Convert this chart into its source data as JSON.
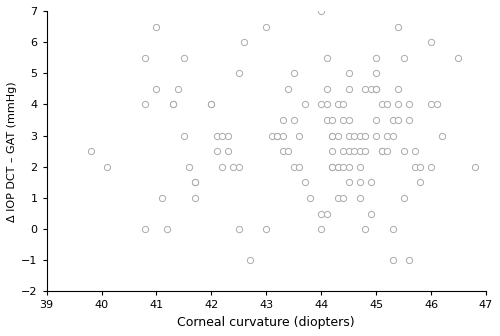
{
  "title": "",
  "xlabel": "Corneal curvature (diopters)",
  "ylabel": "Δ IOP DCT – GAT (mmHg)",
  "xlim": [
    39,
    47
  ],
  "ylim": [
    -2,
    7
  ],
  "xticks": [
    39,
    40,
    41,
    42,
    43,
    44,
    45,
    46,
    47
  ],
  "yticks": [
    -2,
    -1,
    0,
    1,
    2,
    3,
    4,
    5,
    6,
    7
  ],
  "marker_face_color": "white",
  "marker_edge_color": "#aaaaaa",
  "marker_size": 4.5,
  "marker_linewidth": 0.7,
  "data_x": [
    39.8,
    40.1,
    40.8,
    40.8,
    40.8,
    41.0,
    41.0,
    41.1,
    41.2,
    41.3,
    41.3,
    41.4,
    41.5,
    41.5,
    41.6,
    41.7,
    41.7,
    41.7,
    42.0,
    42.0,
    42.1,
    42.1,
    42.2,
    42.2,
    42.3,
    42.3,
    42.4,
    42.5,
    42.5,
    42.5,
    42.6,
    42.7,
    43.0,
    43.0,
    43.1,
    43.2,
    43.2,
    43.3,
    43.3,
    43.3,
    43.4,
    43.4,
    43.5,
    43.5,
    43.5,
    43.6,
    43.6,
    43.7,
    43.7,
    43.8,
    44.0,
    44.0,
    44.0,
    44.0,
    44.1,
    44.1,
    44.1,
    44.1,
    44.1,
    44.2,
    44.2,
    44.2,
    44.2,
    44.2,
    44.2,
    44.3,
    44.3,
    44.3,
    44.3,
    44.3,
    44.4,
    44.4,
    44.4,
    44.4,
    44.4,
    44.5,
    44.5,
    44.5,
    44.5,
    44.5,
    44.5,
    44.5,
    44.6,
    44.6,
    44.7,
    44.7,
    44.7,
    44.7,
    44.7,
    44.8,
    44.8,
    44.8,
    44.8,
    44.9,
    44.9,
    44.9,
    45.0,
    45.0,
    45.0,
    45.0,
    45.0,
    45.0,
    45.1,
    45.1,
    45.1,
    45.2,
    45.2,
    45.2,
    45.3,
    45.3,
    45.3,
    45.3,
    45.4,
    45.4,
    45.4,
    45.4,
    45.5,
    45.5,
    45.5,
    45.6,
    45.6,
    45.6,
    45.7,
    45.7,
    45.8,
    45.8,
    46.0,
    46.0,
    46.0,
    46.1,
    46.2,
    46.5,
    46.8
  ],
  "data_y": [
    2.5,
    2.0,
    5.5,
    4.0,
    0.0,
    6.5,
    4.5,
    1.0,
    0.0,
    4.0,
    4.0,
    4.5,
    5.5,
    3.0,
    2.0,
    1.5,
    1.5,
    1.0,
    4.0,
    4.0,
    3.0,
    2.5,
    3.0,
    2.0,
    3.0,
    2.5,
    2.0,
    5.0,
    2.0,
    0.0,
    6.0,
    -1.0,
    6.5,
    0.0,
    3.0,
    3.0,
    3.0,
    3.5,
    3.0,
    2.5,
    4.5,
    2.5,
    5.0,
    3.5,
    2.0,
    3.0,
    2.0,
    4.0,
    1.5,
    1.0,
    7.0,
    4.0,
    0.5,
    0.0,
    5.5,
    4.5,
    4.0,
    3.5,
    0.5,
    3.5,
    3.0,
    3.0,
    2.5,
    2.0,
    2.0,
    4.0,
    3.0,
    2.0,
    2.0,
    1.0,
    4.0,
    3.5,
    2.5,
    2.0,
    1.0,
    5.0,
    4.5,
    3.5,
    3.0,
    2.5,
    2.0,
    1.5,
    3.0,
    2.5,
    3.0,
    2.5,
    2.0,
    1.5,
    1.0,
    4.5,
    3.0,
    2.5,
    0.0,
    4.5,
    1.5,
    0.5,
    5.5,
    5.0,
    4.5,
    4.5,
    3.5,
    3.0,
    4.0,
    2.5,
    2.5,
    4.0,
    3.0,
    2.5,
    3.5,
    3.0,
    -1.0,
    0.0,
    6.5,
    4.5,
    4.0,
    3.5,
    5.5,
    2.5,
    1.0,
    4.0,
    3.5,
    -1.0,
    2.5,
    2.0,
    2.0,
    1.5,
    6.0,
    4.0,
    2.0,
    4.0,
    3.0,
    5.5,
    2.0
  ]
}
